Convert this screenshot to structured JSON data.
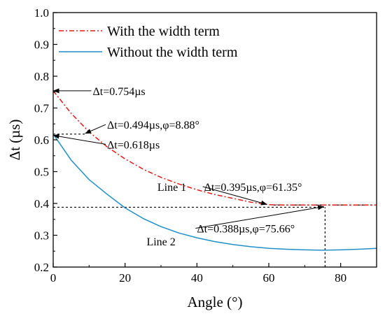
{
  "chart_data": {
    "type": "line",
    "xlabel": "Angle (°)",
    "ylabel": "Δt (µs)",
    "xlim": [
      0,
      90
    ],
    "ylim": [
      0.2,
      1.0
    ],
    "x_ticks": [
      0,
      20,
      40,
      60,
      80
    ],
    "y_ticks": [
      0.2,
      0.3,
      0.4,
      0.5,
      0.6,
      0.7,
      0.8,
      0.9,
      1.0
    ],
    "x_tick_labels": [
      "0",
      "20",
      "40",
      "60",
      "80"
    ],
    "y_tick_labels": [
      "0.2",
      "0.3",
      "0.4",
      "0.5",
      "0.6",
      "0.7",
      "0.8",
      "0.9",
      "1.0"
    ],
    "grid": false,
    "legend": "top-left",
    "series": [
      {
        "name": "With the width term",
        "color": "#e41a1c",
        "style": "dash-dot",
        "x": [
          0,
          5,
          10,
          15,
          20,
          25,
          30,
          35,
          40,
          45,
          50,
          55,
          60,
          65,
          70,
          75,
          80,
          85,
          90
        ],
        "y": [
          0.754,
          0.683,
          0.625,
          0.578,
          0.54,
          0.508,
          0.482,
          0.461,
          0.443,
          0.428,
          0.416,
          0.404,
          0.396,
          0.395,
          0.395,
          0.395,
          0.395,
          0.395,
          0.395
        ]
      },
      {
        "name": "Without the width term",
        "color": "#1f8fc8",
        "style": "solid",
        "x": [
          0,
          5,
          10,
          15,
          20,
          25,
          30,
          35,
          40,
          45,
          50,
          55,
          60,
          65,
          70,
          75,
          80,
          85,
          90
        ],
        "y": [
          0.618,
          0.536,
          0.475,
          0.429,
          0.386,
          0.353,
          0.327,
          0.307,
          0.292,
          0.28,
          0.271,
          0.264,
          0.259,
          0.256,
          0.254,
          0.253,
          0.254,
          0.256,
          0.259
        ]
      }
    ],
    "reference_lines": [
      {
        "from": [
          0,
          0.618
        ],
        "to": [
          8.88,
          0.618
        ]
      },
      {
        "from": [
          0,
          0.388
        ],
        "to": [
          75.66,
          0.388
        ]
      },
      {
        "from": [
          75.66,
          0.2
        ],
        "to": [
          75.66,
          0.388
        ]
      },
      {
        "from": [
          61.35,
          0.395
        ],
        "to": [
          90,
          0.395
        ]
      }
    ],
    "annotations": [
      {
        "text": "Δt=0.754µs",
        "x": 11,
        "y": 0.754,
        "arrow_to": [
          0,
          0.754
        ]
      },
      {
        "text": "Δt=0.494µs,φ=8.88°",
        "x": 15,
        "y": 0.648,
        "arrow_to": [
          8.88,
          0.62
        ]
      },
      {
        "text": "Δt=0.618µs",
        "x": 15,
        "y": 0.586,
        "arrow_to": [
          0,
          0.614
        ]
      },
      {
        "text": "Line 1",
        "x": 29,
        "y": 0.453
      },
      {
        "text": "Δt=0.395µs,φ=61.35°",
        "x": 42,
        "y": 0.453,
        "arrow_to": [
          59.5,
          0.397
        ]
      },
      {
        "text": "Δt=0.388µs,φ=75.66°",
        "x": 40,
        "y": 0.322,
        "arrow_to": [
          75.3,
          0.39
        ]
      },
      {
        "text": "Line 2",
        "x": 26,
        "y": 0.281
      }
    ]
  }
}
